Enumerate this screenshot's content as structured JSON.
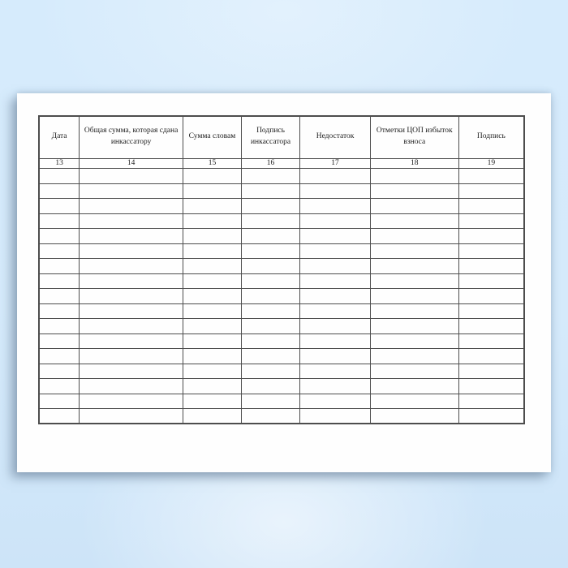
{
  "document": {
    "type": "blank-register-form",
    "columns": [
      {
        "header": "Дата",
        "number": "13"
      },
      {
        "header": "Общая сумма, которая сдана инкассатору",
        "number": "14"
      },
      {
        "header": "Сумма словам",
        "number": "15"
      },
      {
        "header": "Подпись инкассатора",
        "number": "16"
      },
      {
        "header": "Недостаток",
        "number": "17"
      },
      {
        "header": "Отметки ЦОП избыток взноса",
        "number": "18"
      },
      {
        "header": "Подпись",
        "number": "19"
      }
    ],
    "empty_row_count": 17
  },
  "colors": {
    "background_blue": "#d5eafb",
    "paper": "#fefefe",
    "table_line": "#4d4d4d",
    "text": "#1c1c1c"
  }
}
